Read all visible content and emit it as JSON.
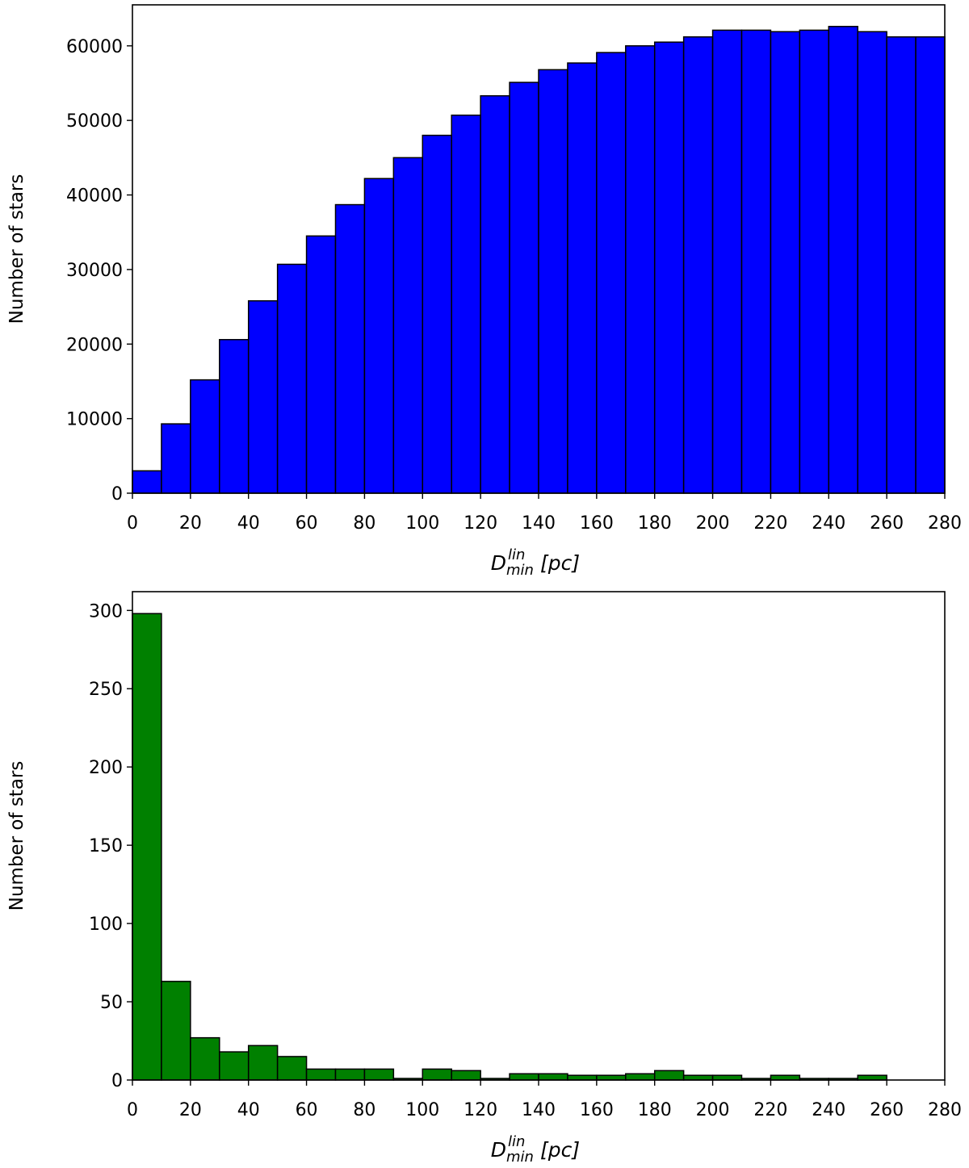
{
  "chart_data": [
    {
      "type": "bar",
      "histogram": true,
      "bin_width": 10,
      "bin_edges_start": 0,
      "values": [
        3000,
        9300,
        15200,
        20600,
        25800,
        30700,
        34500,
        38700,
        42200,
        45000,
        48000,
        50700,
        53300,
        55100,
        56800,
        57700,
        59100,
        60000,
        60500,
        61200,
        62100,
        62100,
        61900,
        62100,
        62600,
        61900,
        61200,
        61200
      ],
      "color": "#0000ff",
      "edge_color": "#000000",
      "xlim": [
        0,
        280
      ],
      "ylim": [
        0,
        65500
      ],
      "xticks": [
        "0",
        "20",
        "40",
        "60",
        "80",
        "100",
        "120",
        "140",
        "160",
        "180",
        "200",
        "220",
        "240",
        "260",
        "280"
      ],
      "yticks": [
        "0",
        "10000",
        "20000",
        "30000",
        "40000",
        "50000",
        "60000"
      ],
      "xlabel": {
        "main": "D",
        "sup": "lin",
        "sub": "min",
        "unit": "[pc]"
      },
      "ylabel": "Number of stars"
    },
    {
      "type": "bar",
      "histogram": true,
      "bin_width": 10,
      "bin_edges_start": 0,
      "values": [
        298,
        63,
        27,
        18,
        22,
        15,
        7,
        7,
        7,
        1,
        7,
        6,
        1,
        4,
        4,
        3,
        3,
        4,
        6,
        3,
        3,
        1,
        3,
        1,
        1,
        3,
        0,
        0
      ],
      "color": "#008000",
      "edge_color": "#000000",
      "xlim": [
        0,
        280
      ],
      "ylim": [
        0,
        312
      ],
      "xticks": [
        "0",
        "20",
        "40",
        "60",
        "80",
        "100",
        "120",
        "140",
        "160",
        "180",
        "200",
        "220",
        "240",
        "260",
        "280"
      ],
      "yticks": [
        "0",
        "50",
        "100",
        "150",
        "200",
        "250",
        "300"
      ],
      "xlabel": {
        "main": "D",
        "sup": "lin",
        "sub": "min",
        "unit": "[pc]"
      },
      "ylabel": "Number of stars"
    }
  ]
}
